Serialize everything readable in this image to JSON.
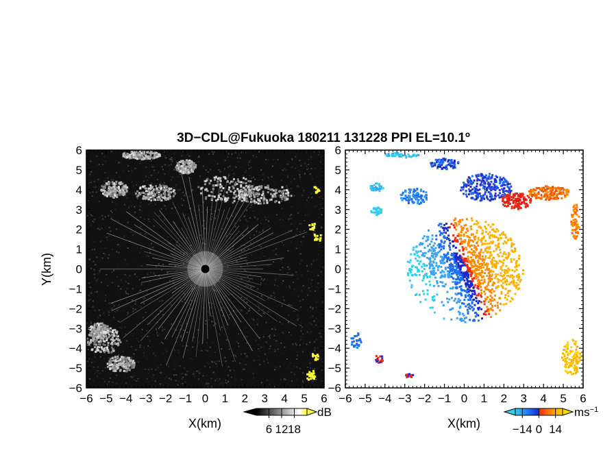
{
  "title": "3D−CDL@Fukuoka 180211 131228 PPI EL=10.1º",
  "chart_data": [
    {
      "type": "heatmap",
      "panel": "left",
      "quantity_label": "dB",
      "xlabel": "X(km)",
      "ylabel": "Y(km)",
      "xlim": [
        -6,
        6
      ],
      "ylim": [
        -6,
        6
      ],
      "x_ticks": [
        "−6",
        "−5",
        "−4",
        "−3",
        "−2",
        "−1",
        "0",
        "1",
        "2",
        "3",
        "4",
        "5",
        "6"
      ],
      "y_ticks": [
        "−6",
        "−5",
        "−4",
        "−3",
        "−2",
        "−1",
        "0",
        "1",
        "2",
        "3",
        "4",
        "5",
        "6"
      ],
      "colorbar": {
        "label": "dB",
        "ticks": [
          "6",
          "12",
          "18"
        ],
        "tick_values": [
          6,
          12,
          18
        ],
        "range": [
          0,
          24
        ],
        "colors": [
          "#000000",
          "#ffffff",
          "#ffff33"
        ]
      }
    },
    {
      "type": "heatmap",
      "panel": "right",
      "quantity_label": "ms⁻¹",
      "xlabel": "X(km)",
      "xlim": [
        -6,
        6
      ],
      "ylim": [
        -6,
        6
      ],
      "x_ticks": [
        "−6",
        "−5",
        "−4",
        "−3",
        "−2",
        "−1",
        "0",
        "1",
        "2",
        "3",
        "4",
        "5",
        "6"
      ],
      "y_ticks": [
        "−6",
        "−5",
        "−4",
        "−3",
        "−2",
        "−1",
        "0",
        "1",
        "2",
        "3",
        "4",
        "5",
        "6"
      ],
      "colorbar": {
        "label": "ms",
        "label_sup": "−1",
        "ticks": [
          "−14",
          "0",
          "14"
        ],
        "tick_values": [
          -14,
          0,
          14
        ],
        "range": [
          -20,
          20
        ],
        "colors": [
          "#33ccee",
          "#1c6ef5",
          "#1c28c8",
          "#ee2a10",
          "#ff8c00",
          "#ffd500"
        ]
      }
    }
  ]
}
